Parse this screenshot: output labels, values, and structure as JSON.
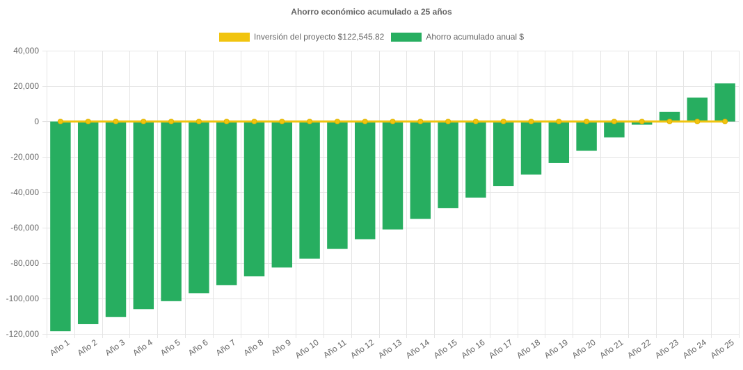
{
  "chart_data": {
    "type": "bar",
    "title": "Ahorro económico acumulado a 25 años",
    "categories": [
      "Año 1",
      "Año 2",
      "Año 3",
      "Año 4",
      "Año 5",
      "Año 6",
      "Año 7",
      "Año 8",
      "Año 9",
      "Año 10",
      "Año 11",
      "Año 12",
      "Año 13",
      "Año 14",
      "Año 15",
      "Año 16",
      "Año 17",
      "Año 18",
      "Año 19",
      "Año 20",
      "Año 21",
      "Año 22",
      "Año 23",
      "Año 24",
      "Año 25"
    ],
    "series": [
      {
        "name": "Inversión del proyecto $122,545.82",
        "kind": "line",
        "color": "#f1c40f",
        "values": [
          0,
          0,
          0,
          0,
          0,
          0,
          0,
          0,
          0,
          0,
          0,
          0,
          0,
          0,
          0,
          0,
          0,
          0,
          0,
          0,
          0,
          0,
          0,
          0,
          0
        ]
      },
      {
        "name": "Ahorro acumulado anual $",
        "kind": "bar",
        "color": "#27ae60",
        "values": [
          -118500,
          -114500,
          -110500,
          -106000,
          -101500,
          -97000,
          -92500,
          -87500,
          -82500,
          -77500,
          -72000,
          -66500,
          -61000,
          -55000,
          -49000,
          -43000,
          -36500,
          -30000,
          -23500,
          -16500,
          -9000,
          -1800,
          5500,
          13500,
          21500
        ]
      }
    ],
    "ylim": [
      -120000,
      40000
    ],
    "yticks": [
      40000,
      20000,
      0,
      -20000,
      -40000,
      -60000,
      -80000,
      -100000,
      -120000
    ],
    "ytick_labels": [
      "40,000",
      "20,000",
      "0",
      "-20,000",
      "-40,000",
      "-60,000",
      "-80,000",
      "-100,000",
      "-120,000"
    ],
    "xlabel": "",
    "ylabel": "",
    "grid": true,
    "legend_position": "top-center"
  }
}
